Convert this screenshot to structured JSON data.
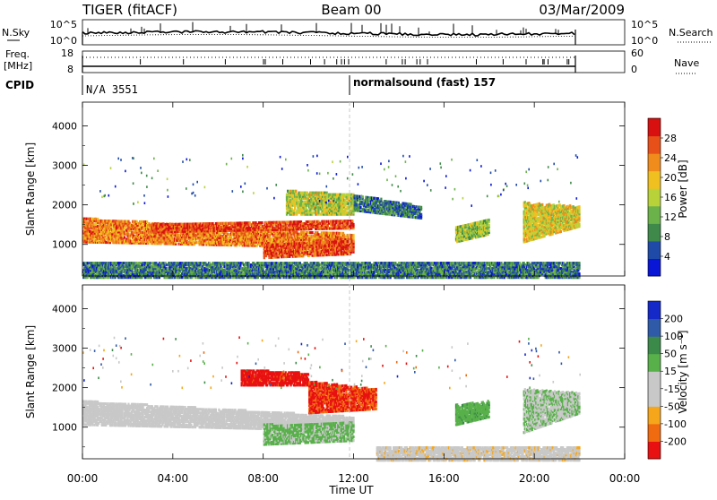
{
  "header": {
    "station": "TIGER (fitACF)",
    "beam": "Beam 00",
    "date": "03/Mar/2009"
  },
  "noise_panel": {
    "left_label": "N.Sky",
    "right_label": "N.Search",
    "ticks": [
      "10^5",
      "10^0"
    ],
    "right_ticks": [
      "10^5",
      "10^0"
    ]
  },
  "freq_panel": {
    "left_label_1": "Freq.",
    "left_label_2": "[MHz]",
    "left_ticks": [
      "18",
      "8"
    ],
    "right_ticks": [
      "60",
      "0"
    ],
    "right_label": "Nave"
  },
  "cpid": {
    "label": "CPID",
    "segments": [
      {
        "text": "N/A 3551",
        "start_hour": 0
      },
      {
        "text": "normalsound (fast) 157",
        "start_hour": 12
      }
    ]
  },
  "colors": {
    "power": [
      "#0a16d6",
      "#1f4aa8",
      "#3f8a4a",
      "#6cb24a",
      "#b8d23a",
      "#f0c020",
      "#f08c1c",
      "#e8501a",
      "#d81010"
    ],
    "velocity": [
      "#e81010",
      "#f06a10",
      "#f5a61a",
      "#c8c8c8",
      "#c8c8c8",
      "#58b04a",
      "#3c8a4a",
      "#2f5aa8",
      "#1528c8"
    ],
    "velocity_gray": "#c8c8c8"
  },
  "chart_data": [
    {
      "type": "heatmap",
      "name": "power",
      "ylabel": "Slant Range [km]",
      "y_ticks": [
        1000,
        2000,
        3000,
        4000
      ],
      "ylim": [
        200,
        4600
      ],
      "xlim": [
        0,
        24
      ],
      "colorbar": {
        "label": "Power [dB]",
        "ticks": [
          "28",
          "24",
          "20",
          "16",
          "12",
          "8",
          "4"
        ],
        "range": [
          0,
          32
        ]
      },
      "regions": [
        {
          "x": [
            0,
            12
          ],
          "range_start": [
            1700,
            1300
          ],
          "range_end": [
            1100,
            950
          ],
          "value": 24
        },
        {
          "x": [
            3,
            12
          ],
          "range_start": [
            1550,
            1650
          ],
          "range_end": [
            1350,
            1450
          ],
          "value": 28
        },
        {
          "x": [
            9,
            12
          ],
          "range_start": [
            2400,
            2300
          ],
          "range_end": [
            1800,
            1800
          ],
          "value": 16
        },
        {
          "x": [
            8,
            12
          ],
          "range_start": [
            1050,
            1150
          ],
          "range_end": [
            700,
            800
          ],
          "value": 27
        },
        {
          "x": [
            12,
            15
          ],
          "range_start": [
            2300,
            2000
          ],
          "range_end": [
            1900,
            1700
          ],
          "value": 8
        },
        {
          "x": [
            16.5,
            18
          ],
          "range_start": [
            1500,
            1700
          ],
          "range_end": [
            1100,
            1300
          ],
          "value": 14
        },
        {
          "x": [
            19.5,
            22
          ],
          "range_start": [
            2100,
            2000
          ],
          "range_end": [
            1100,
            1500
          ],
          "value": 18
        },
        {
          "x": [
            0,
            22
          ],
          "range_start": [
            600,
            600
          ],
          "range_end": [
            200,
            200
          ],
          "value": 8
        }
      ]
    },
    {
      "type": "heatmap",
      "name": "velocity",
      "ylabel": "Slant Range [km]",
      "y_ticks": [
        1000,
        2000,
        3000,
        4000
      ],
      "ylim": [
        200,
        4600
      ],
      "xlim": [
        0,
        24
      ],
      "colorbar": {
        "label": "Velocity [m s⁻¹]",
        "ticks": [
          "200",
          "100",
          "50",
          "15",
          "-15",
          "-50",
          "-100",
          "-200"
        ],
        "range": [
          -250,
          250
        ]
      },
      "regions": [
        {
          "x": [
            0,
            12
          ],
          "range_start": [
            1700,
            1300
          ],
          "range_end": [
            1100,
            950
          ],
          "value": 0
        },
        {
          "x": [
            7,
            10
          ],
          "range_start": [
            2500,
            2400
          ],
          "range_end": [
            2100,
            2100
          ],
          "value": -220
        },
        {
          "x": [
            10,
            13
          ],
          "range_start": [
            2200,
            2000
          ],
          "range_end": [
            1400,
            1500
          ],
          "value": -200
        },
        {
          "x": [
            8,
            12
          ],
          "range_start": [
            1100,
            1150
          ],
          "range_end": [
            600,
            700
          ],
          "value": 40
        },
        {
          "x": [
            16.5,
            18
          ],
          "range_start": [
            1600,
            1700
          ],
          "range_end": [
            1100,
            1300
          ],
          "value": 60
        },
        {
          "x": [
            19.5,
            22
          ],
          "range_start": [
            2000,
            1900
          ],
          "range_end": [
            900,
            1400
          ],
          "value": 20
        },
        {
          "x": [
            13,
            22
          ],
          "range_start": [
            550,
            550
          ],
          "range_end": [
            200,
            200
          ],
          "value": -60
        }
      ]
    }
  ],
  "x_axis": {
    "ticks": [
      "00:00",
      "04:00",
      "08:00",
      "12:00",
      "16:00",
      "20:00",
      "00:00"
    ],
    "label": "Time UT"
  }
}
